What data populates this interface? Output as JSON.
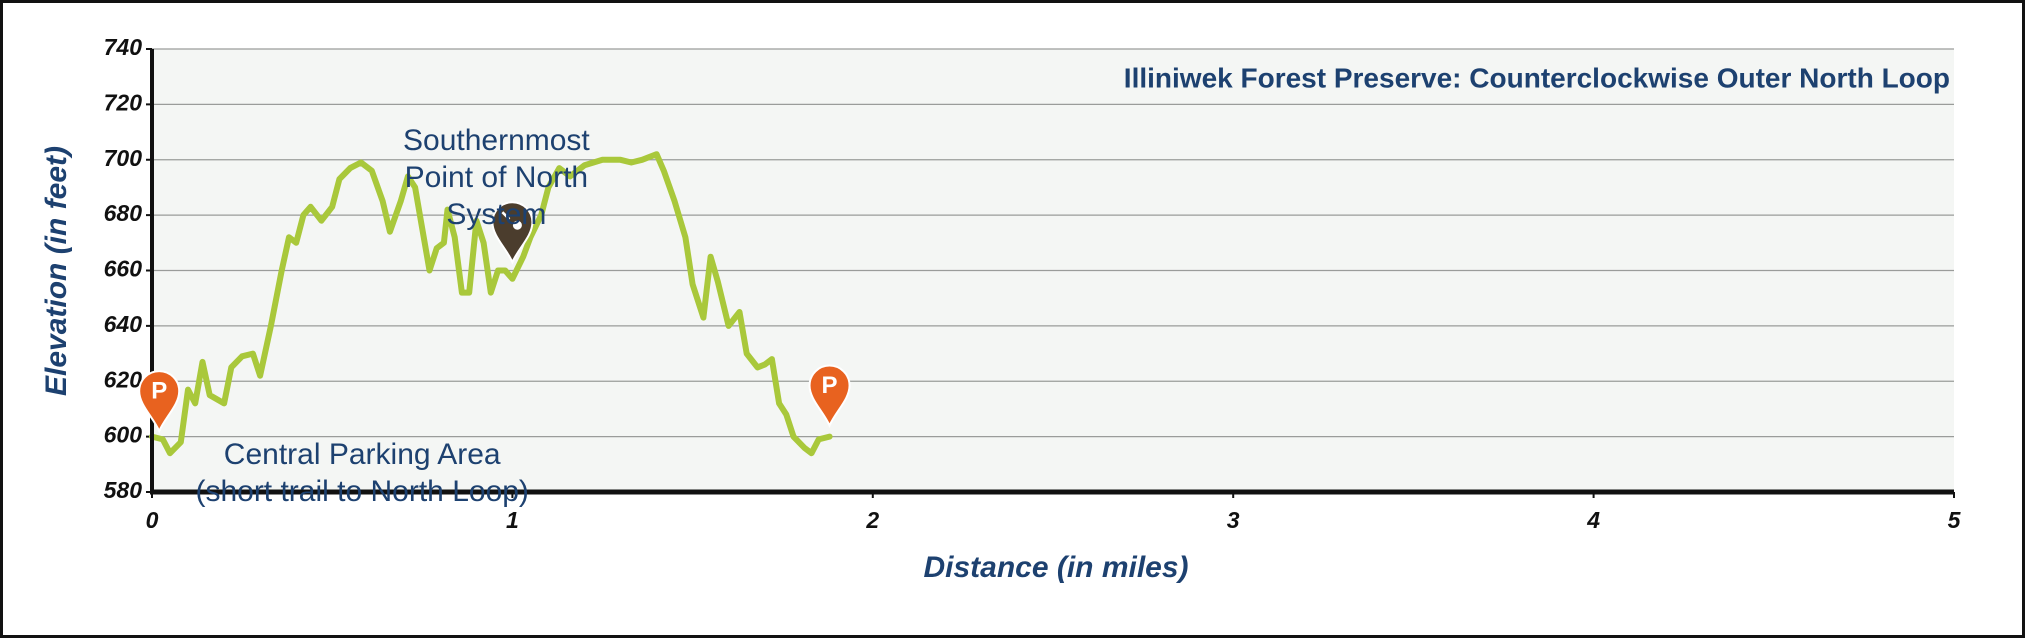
{
  "chart_data": {
    "type": "line",
    "title": "Illiniwek Forest Preserve: Counterclockwise Outer North Loop",
    "xlabel": "Distance (in miles)",
    "ylabel": "Elevation (in feet)",
    "x": [
      0,
      0.03,
      0.05,
      0.08,
      0.1,
      0.12,
      0.14,
      0.16,
      0.2,
      0.22,
      0.25,
      0.28,
      0.3,
      0.33,
      0.36,
      0.38,
      0.4,
      0.42,
      0.44,
      0.47,
      0.5,
      0.52,
      0.55,
      0.58,
      0.61,
      0.64,
      0.66,
      0.69,
      0.71,
      0.73,
      0.75,
      0.77,
      0.79,
      0.81,
      0.82,
      0.84,
      0.86,
      0.88,
      0.9,
      0.92,
      0.94,
      0.96,
      0.98,
      1.0,
      1.03,
      1.05,
      1.08,
      1.1,
      1.13,
      1.16,
      1.2,
      1.25,
      1.3,
      1.33,
      1.36,
      1.4,
      1.42,
      1.45,
      1.48,
      1.5,
      1.53,
      1.55,
      1.57,
      1.6,
      1.63,
      1.65,
      1.68,
      1.7,
      1.72,
      1.74,
      1.76,
      1.78,
      1.81,
      1.83,
      1.85,
      1.88
    ],
    "values": [
      600,
      599,
      594,
      598,
      617,
      612,
      627,
      615,
      612,
      625,
      629,
      630,
      622,
      640,
      660,
      672,
      670,
      680,
      683,
      678,
      683,
      693,
      697,
      699,
      696,
      685,
      674,
      685,
      694,
      690,
      675,
      660,
      668,
      670,
      682,
      672,
      652,
      652,
      678,
      670,
      652,
      660,
      660,
      657,
      665,
      672,
      680,
      690,
      697,
      694,
      698,
      700,
      700,
      699,
      700,
      702,
      696,
      685,
      672,
      655,
      643,
      665,
      656,
      640,
      645,
      630,
      625,
      626,
      628,
      612,
      608,
      600,
      596,
      594,
      599,
      600
    ],
    "color": "#a9c83b",
    "xlim": [
      0,
      5
    ],
    "xticks": [
      0,
      1,
      2,
      3,
      4,
      5
    ],
    "ylim": [
      580,
      740
    ],
    "yticks": [
      580,
      600,
      620,
      640,
      660,
      680,
      700,
      720,
      740
    ],
    "grid": true,
    "annotations": [
      {
        "text": [
          "Southernmost",
          "Point of North",
          "System"
        ]
      },
      {
        "text": [
          "Central Parking Area",
          "(short trail to North Loop)"
        ]
      }
    ],
    "markers": [
      {
        "label": "P",
        "x": 0.02,
        "y": 602,
        "color": "#e8621f"
      },
      {
        "label": "P",
        "x": 1.88,
        "y": 604,
        "color": "#e8621f"
      },
      {
        "x": 1.0,
        "y": 663,
        "color": "#4b3d2d"
      }
    ]
  }
}
